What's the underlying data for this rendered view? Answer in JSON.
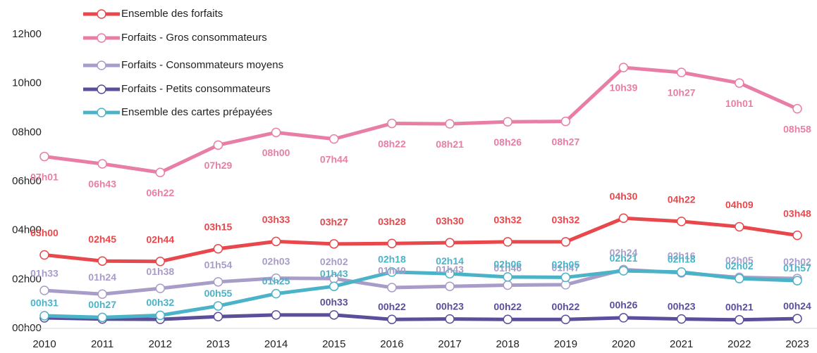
{
  "chart_data": {
    "type": "line",
    "categories": [
      "2010",
      "2011",
      "2012",
      "2013",
      "2014",
      "2015",
      "2016",
      "2017",
      "2018",
      "2019",
      "2020",
      "2021",
      "2022",
      "2023"
    ],
    "ylim": [
      0,
      12
    ],
    "yticks": [
      {
        "value": 0,
        "label": "00h00"
      },
      {
        "value": 2,
        "label": "02h00"
      },
      {
        "value": 4,
        "label": "04h00"
      },
      {
        "value": 6,
        "label": "06h00"
      },
      {
        "value": 8,
        "label": "08h00"
      },
      {
        "value": 10,
        "label": "10h00"
      },
      {
        "value": 12,
        "label": "12h00"
      }
    ],
    "legend": "top-left",
    "series": [
      {
        "name": "Ensemble des forfaits",
        "color": "#e8474c",
        "values": [
          3,
          2.75,
          2.7333,
          3.25,
          3.55,
          3.45,
          3.4667,
          3.5,
          3.5333,
          3.5333,
          4.5,
          4.3667,
          4.15,
          3.8
        ],
        "value_labels": [
          "03h00",
          "02h45",
          "02h44",
          "03h15",
          "03h33",
          "03h27",
          "03h28",
          "03h30",
          "03h32",
          "03h32",
          "04h30",
          "04h22",
          "04h09",
          "03h48"
        ]
      },
      {
        "name": "Forfaits - Gros consommateurs",
        "color": "#e87ea6",
        "values": [
          7.0167,
          6.7167,
          6.3667,
          7.4833,
          8,
          7.7333,
          8.3667,
          8.35,
          8.4333,
          8.45,
          10.65,
          10.45,
          10.0167,
          8.9667
        ],
        "value_labels": [
          "07h01",
          "06h43",
          "06h22",
          "07h29",
          "08h00",
          "07h44",
          "08h22",
          "08h21",
          "08h26",
          "08h27",
          "10h39",
          "10h27",
          "10h01",
          "08h58"
        ]
      },
      {
        "name": "Forfaits - Consommateurs moyens",
        "color": "#a89cc8",
        "values": [
          1.55,
          1.4,
          1.6333,
          1.9,
          2.05,
          2.0333,
          1.6667,
          1.7167,
          1.7667,
          1.7833,
          2.4,
          2.2667,
          2.0833,
          2.0333
        ],
        "value_labels": [
          "01h33",
          "01h24",
          "01h38",
          "01h54",
          "02h03",
          "02h02",
          "01h40",
          "01h43",
          "01h46",
          "01h47",
          "02h24",
          "02h16",
          "02h05",
          "02h02"
        ]
      },
      {
        "name": "Forfaits - Petits consommateurs",
        "color": "#5b4e9a",
        "values": [
          0.43,
          0.38,
          0.37,
          0.48,
          0.55,
          0.55,
          0.3667,
          0.3833,
          0.3667,
          0.3667,
          0.4333,
          0.3833,
          0.35,
          0.4
        ],
        "value_labels": [
          null,
          null,
          null,
          null,
          null,
          "00h33",
          "00h22",
          "00h23",
          "00h22",
          "00h22",
          "00h26",
          "00h23",
          "00h21",
          "00h24"
        ]
      },
      {
        "name": "Ensemble des cartes prépayées",
        "color": "#4bb3c8",
        "values": [
          0.5167,
          0.45,
          0.5333,
          0.9167,
          1.4167,
          1.7167,
          2.3,
          2.2333,
          2.1,
          2.0833,
          2.35,
          2.3,
          2.0333,
          1.95
        ],
        "value_labels": [
          "00h31",
          "00h27",
          "00h32",
          "00h55",
          "01h25",
          "01h43",
          "02h18",
          "02h14",
          "02h06",
          "02h05",
          "02h21",
          "02h18",
          "02h02",
          "01h57"
        ]
      }
    ]
  }
}
